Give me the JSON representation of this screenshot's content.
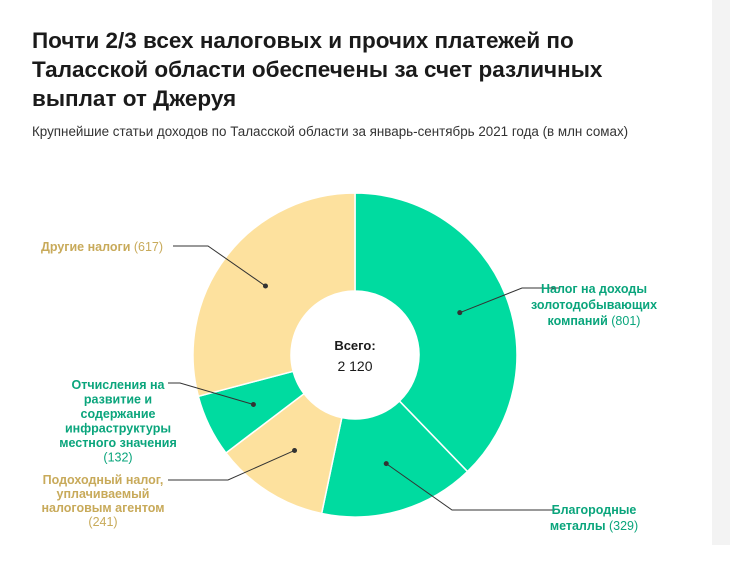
{
  "title": "Почти 2/3 всех налоговых и прочих платежей по Таласской области обеспечены за счет различных выплат от Джеруя",
  "subtitle": "Крупнейшие статьи доходов по Таласской области за январь-сентябрь 2021 года (в млн сомах)",
  "colors": {
    "green": "#00dba0",
    "yellow": "#fde19e",
    "green_text": "#0aa57c",
    "yellow_text": "#c8aa5a"
  },
  "chart_data": {
    "type": "pie",
    "variant": "donut",
    "title": "Почти 2/3 всех налоговых и прочих платежей по Таласской области обеспечены за счет различных выплат от Джеруя",
    "subtitle": "Крупнейшие статьи доходов по Таласской области за январь-сентябрь 2021 года (в млн сомах)",
    "center_label": "Всего:",
    "center_value": "2 120",
    "unit": "млн сом",
    "slices": [
      {
        "name": "Налог на доходы золотодобывающих компаний",
        "value": 801,
        "value_label": "(801)",
        "label_lines": [
          "Налог на доходы",
          "золотодобывающих",
          "компаний"
        ],
        "color": "#00dba0",
        "text_color": "#0aa57c",
        "side": "right"
      },
      {
        "name": "Благородные металлы",
        "value": 329,
        "value_label": "(329)",
        "label_lines": [
          "Благородные",
          "металлы"
        ],
        "color": "#00dba0",
        "text_color": "#0aa57c",
        "side": "right"
      },
      {
        "name": "Подоходный налог, уплачиваемый налоговым агентом",
        "value": 241,
        "value_label": "(241)",
        "label_lines": [
          "Подоходный налог,",
          "уплачиваемый",
          "налоговым агентом"
        ],
        "color": "#fde19e",
        "text_color": "#c8aa5a",
        "side": "left"
      },
      {
        "name": "Отчисления на развитие и содержание инфраструктуры местного значения",
        "value": 132,
        "value_label": "(132)",
        "label_lines": [
          "Отчисления на",
          "развитие и",
          "содержание",
          "инфраструктуры",
          "местного значения"
        ],
        "color": "#00dba0",
        "text_color": "#0aa57c",
        "side": "left"
      },
      {
        "name": "Другие налоги",
        "value": 617,
        "value_label": "(617)",
        "label_lines": [
          "Другие налоги"
        ],
        "color": "#fde19e",
        "text_color": "#c8aa5a",
        "side": "left"
      }
    ]
  }
}
